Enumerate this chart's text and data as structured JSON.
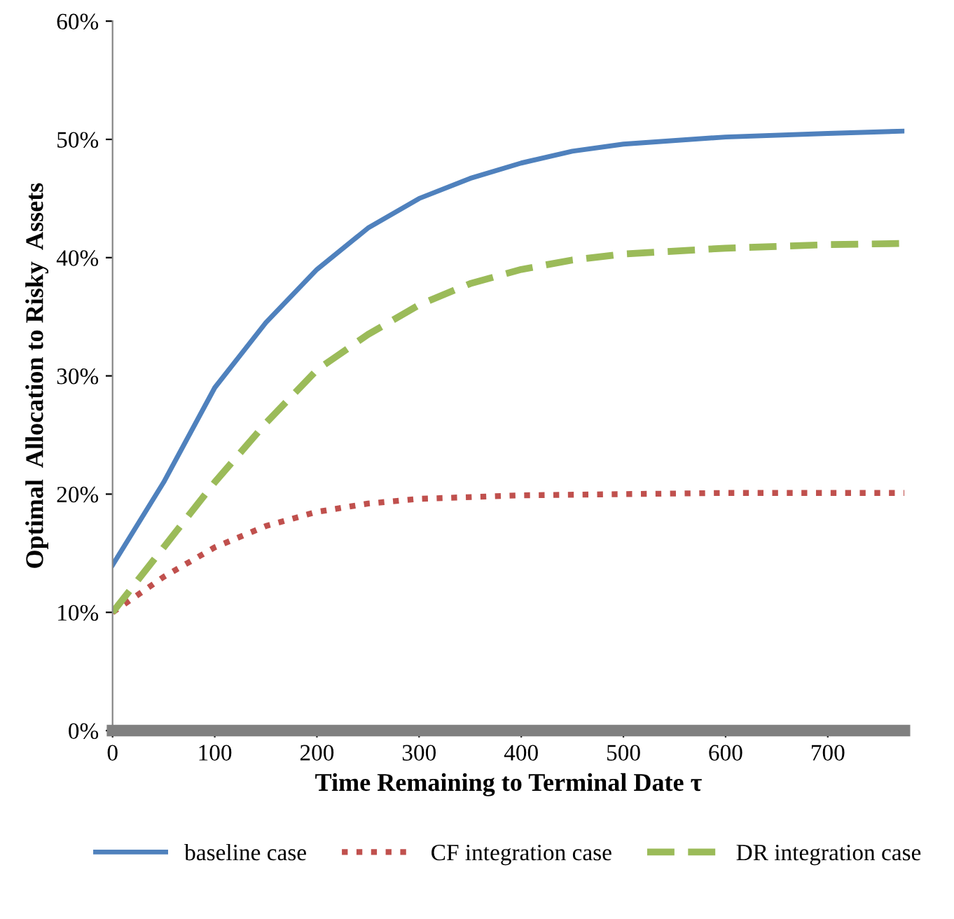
{
  "chart_data": {
    "type": "line",
    "xlabel": "Time Remaining to Terminal Date τ",
    "ylabel": "Optimal  Allocation to Risky  Assets",
    "xlim": [
      0,
      775
    ],
    "ylim": [
      0,
      60
    ],
    "xticks": [
      0,
      100,
      200,
      300,
      400,
      500,
      600,
      700
    ],
    "yticks": [
      {
        "value": 0,
        "label": "0%"
      },
      {
        "value": 10,
        "label": "10%"
      },
      {
        "value": 20,
        "label": "20%"
      },
      {
        "value": 30,
        "label": "30%"
      },
      {
        "value": 40,
        "label": "40%"
      },
      {
        "value": 50,
        "label": "50%"
      },
      {
        "value": 60,
        "label": "60%"
      }
    ],
    "grid": false,
    "legend": "bottom",
    "series": [
      {
        "name": "baseline case",
        "color": "#4f81bd",
        "line_style": "solid",
        "x": [
          0,
          50,
          100,
          150,
          200,
          250,
          300,
          350,
          400,
          450,
          500,
          600,
          700,
          775
        ],
        "values": [
          14,
          21,
          29,
          34.5,
          39,
          42.5,
          45,
          46.7,
          48,
          49,
          49.6,
          50.2,
          50.5,
          50.7
        ]
      },
      {
        "name": "CF integration case",
        "color": "#c0504d",
        "line_style": "dotted",
        "x": [
          0,
          50,
          100,
          150,
          200,
          250,
          300,
          400,
          500,
          600,
          775
        ],
        "values": [
          10,
          13,
          15.5,
          17.3,
          18.5,
          19.2,
          19.6,
          19.9,
          20,
          20.1,
          20.1
        ]
      },
      {
        "name": "DR integration case",
        "color": "#9bbb59",
        "line_style": "dashed",
        "x": [
          0,
          50,
          100,
          150,
          200,
          250,
          300,
          350,
          400,
          450,
          500,
          600,
          700,
          775
        ],
        "values": [
          10,
          15.5,
          21,
          26,
          30.5,
          33.5,
          36,
          37.8,
          39,
          39.8,
          40.3,
          40.8,
          41.1,
          41.2
        ]
      }
    ]
  }
}
